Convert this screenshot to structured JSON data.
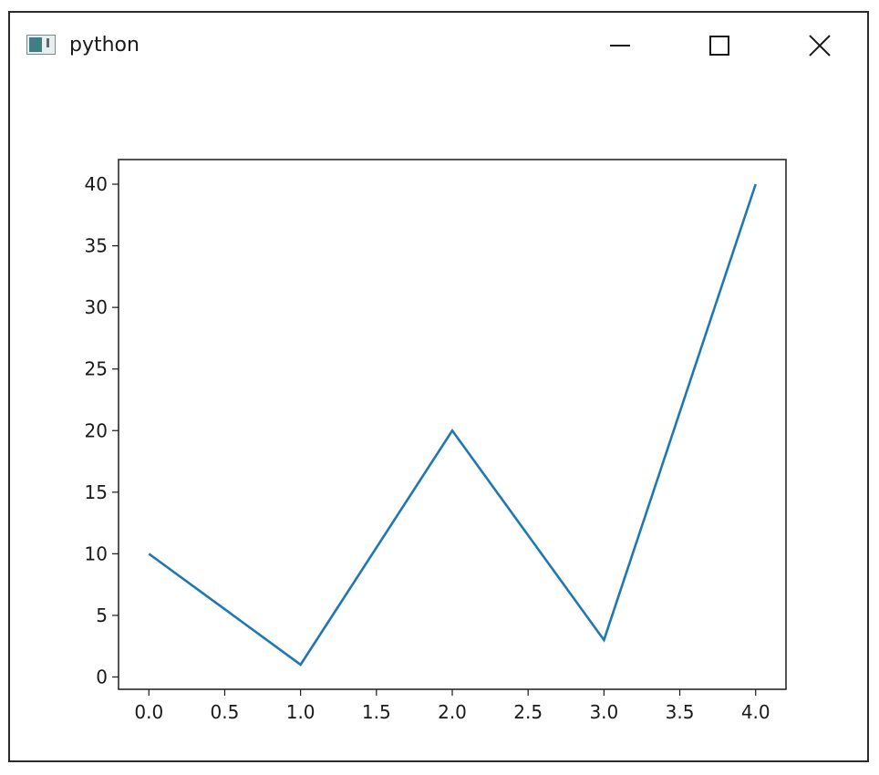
{
  "window": {
    "title": "python",
    "icon": "figure-window-icon",
    "controls": [
      "minimize-icon",
      "maximize-icon",
      "close-icon"
    ]
  },
  "chart_data": {
    "type": "line",
    "title": "",
    "xlabel": "",
    "ylabel": "",
    "x": [
      0,
      1,
      2,
      3,
      4
    ],
    "series": [
      {
        "values": [
          10,
          1,
          20,
          3,
          40
        ],
        "color": "#1f77b4"
      }
    ],
    "xlim": [
      -0.2,
      4.2
    ],
    "ylim": [
      -1,
      42
    ],
    "xticks": [
      0,
      0.5,
      1,
      1.5,
      2,
      2.5,
      3,
      3.5,
      4
    ],
    "xtick_labels": [
      "0.0",
      "0.5",
      "1.0",
      "1.5",
      "2.0",
      "2.5",
      "3.0",
      "3.5",
      "4.0"
    ],
    "yticks": [
      0,
      5,
      10,
      15,
      20,
      25,
      30,
      35,
      40
    ],
    "ytick_labels": [
      "0",
      "5",
      "10",
      "15",
      "20",
      "25",
      "30",
      "35",
      "40"
    ],
    "grid": false,
    "legend": "none"
  }
}
